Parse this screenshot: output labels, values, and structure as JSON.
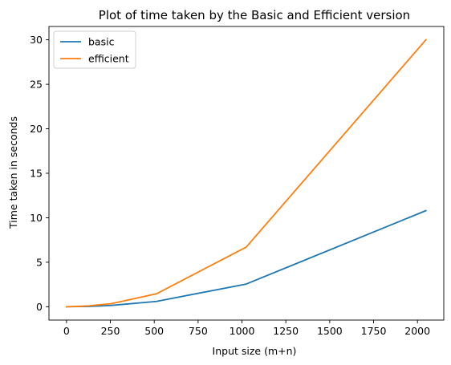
{
  "chart_data": {
    "type": "line",
    "title": "Plot of time taken by the Basic and Efficient version",
    "xlabel": "Input size (m+n)",
    "ylabel": "Time taken in seconds",
    "xlim": [
      -100,
      2150
    ],
    "ylim": [
      -1.5,
      31.5
    ],
    "xticks": [
      0,
      250,
      500,
      750,
      1000,
      1250,
      1500,
      1750,
      2000
    ],
    "yticks": [
      0,
      5,
      10,
      15,
      20,
      25,
      30
    ],
    "grid": false,
    "legend_position": "top-left",
    "series": [
      {
        "name": "basic",
        "color": "#1f77b4",
        "x": [
          0,
          32,
          64,
          128,
          256,
          512,
          1024,
          2048
        ],
        "y": [
          0.0,
          0.01,
          0.02,
          0.04,
          0.15,
          0.6,
          2.55,
          10.8
        ]
      },
      {
        "name": "efficient",
        "color": "#ff7f0e",
        "x": [
          0,
          32,
          64,
          128,
          256,
          512,
          1024,
          2048
        ],
        "y": [
          0.0,
          0.02,
          0.04,
          0.1,
          0.35,
          1.45,
          6.7,
          30.0
        ]
      }
    ]
  }
}
